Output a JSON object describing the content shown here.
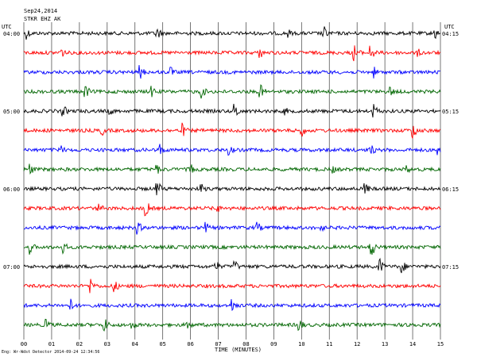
{
  "header": {
    "date": "Sep24,2014",
    "station": "STKR EHZ AK",
    "utc_left": "UTC",
    "utc_right": "UTC"
  },
  "footer": {
    "note": "Eng: Wr-Wdst Detector   2014-09-24 12:34:56",
    "xlabel": "TIME (MINUTES)"
  },
  "chart_data": {
    "type": "line",
    "title": "",
    "xlabel": "TIME (MINUTES)",
    "ylabel": "",
    "xlim": [
      0,
      15
    ],
    "x_ticks": [
      "00",
      "01",
      "02",
      "03",
      "04",
      "05",
      "06",
      "07",
      "08",
      "09",
      "10",
      "11",
      "12",
      "13",
      "14",
      "15"
    ],
    "left_labels": [
      "04:00",
      "05:00",
      "06:00",
      "07:00"
    ],
    "right_labels": [
      "04:15",
      "05:15",
      "06:15",
      "07:15"
    ],
    "trace_colors": [
      "#000000",
      "#ff0000",
      "#0000ff",
      "#006600"
    ],
    "series": [
      {
        "color": "#000000",
        "events": [
          [
            0.1,
            8
          ],
          [
            4.8,
            9
          ],
          [
            9.5,
            7
          ],
          [
            10.8,
            10
          ],
          [
            14.8,
            9
          ]
        ]
      },
      {
        "color": "#ff0000",
        "events": [
          [
            1.3,
            10
          ],
          [
            8.5,
            8
          ],
          [
            11.9,
            12
          ],
          [
            12.5,
            10
          ],
          [
            14.2,
            6
          ]
        ]
      },
      {
        "color": "#0000ff",
        "events": [
          [
            4.2,
            9
          ],
          [
            5.3,
            7
          ],
          [
            12.6,
            8
          ]
        ]
      },
      {
        "color": "#006600",
        "events": [
          [
            2.2,
            10
          ],
          [
            4.6,
            8
          ],
          [
            6.4,
            9
          ],
          [
            8.5,
            11
          ],
          [
            13.2,
            7
          ]
        ]
      },
      {
        "color": "#000000",
        "events": [
          [
            1.4,
            9
          ],
          [
            3.1,
            7
          ],
          [
            7.6,
            11
          ],
          [
            9.4,
            6
          ],
          [
            12.6,
            10
          ]
        ]
      },
      {
        "color": "#ff0000",
        "events": [
          [
            2.8,
            8
          ],
          [
            5.7,
            10
          ],
          [
            10.0,
            9
          ],
          [
            14.0,
            12
          ]
        ]
      },
      {
        "color": "#0000ff",
        "events": [
          [
            1.3,
            8
          ],
          [
            4.9,
            9
          ],
          [
            7.4,
            7
          ],
          [
            12.5,
            8
          ],
          [
            14.9,
            10
          ]
        ]
      },
      {
        "color": "#006600",
        "events": [
          [
            0.2,
            9
          ],
          [
            4.8,
            7
          ],
          [
            6.0,
            8
          ],
          [
            11.1,
            7
          ],
          [
            13.8,
            6
          ]
        ]
      },
      {
        "color": "#000000",
        "events": [
          [
            4.8,
            11
          ],
          [
            6.4,
            7
          ],
          [
            12.3,
            8
          ]
        ]
      },
      {
        "color": "#ff0000",
        "events": [
          [
            2.7,
            7
          ],
          [
            4.4,
            11
          ],
          [
            6.9,
            9
          ]
        ]
      },
      {
        "color": "#0000ff",
        "events": [
          [
            4.1,
            9
          ],
          [
            6.5,
            10
          ],
          [
            8.4,
            8
          ],
          [
            10.7,
            6
          ]
        ]
      },
      {
        "color": "#006600",
        "events": [
          [
            0.2,
            10
          ],
          [
            1.4,
            9
          ],
          [
            12.5,
            14
          ]
        ]
      },
      {
        "color": "#000000",
        "events": [
          [
            6.9,
            9
          ],
          [
            7.6,
            8
          ],
          [
            12.8,
            12
          ],
          [
            13.6,
            10
          ]
        ]
      },
      {
        "color": "#ff0000",
        "events": [
          [
            2.4,
            11
          ],
          [
            3.2,
            12
          ]
        ]
      },
      {
        "color": "#0000ff",
        "events": [
          [
            1.7,
            9
          ],
          [
            7.5,
            10
          ]
        ]
      },
      {
        "color": "#006600",
        "events": [
          [
            0.8,
            9
          ],
          [
            2.9,
            10
          ],
          [
            3.9,
            7
          ],
          [
            5.9,
            8
          ],
          [
            9.9,
            10
          ],
          [
            13.9,
            9
          ]
        ]
      }
    ]
  }
}
